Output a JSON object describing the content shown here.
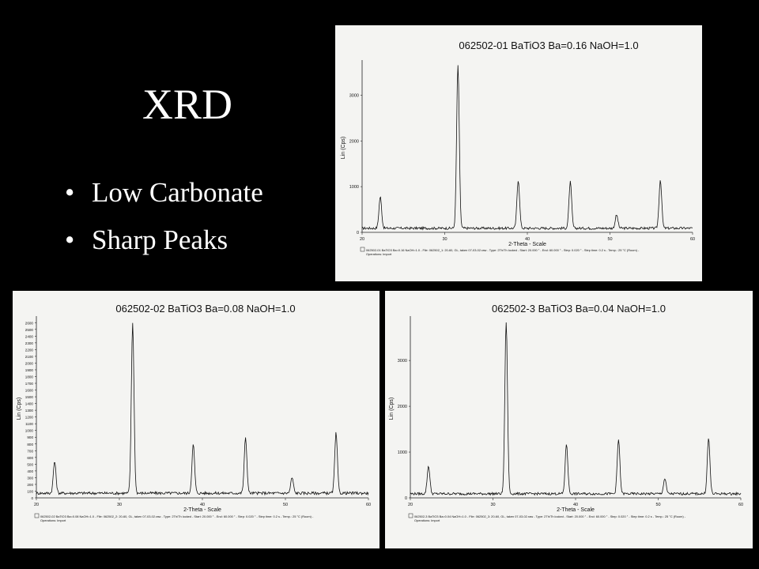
{
  "slide": {
    "title": "XRD",
    "bullets": [
      "Low Carbonate",
      "Sharp Peaks"
    ]
  },
  "chart_data": [
    {
      "type": "line",
      "title": "062502-01 BaTiO3 Ba=0.16 NaOH=1.0",
      "xlabel": "2-Theta - Scale",
      "ylabel": "Lin (Cps)",
      "xlim": [
        20,
        60
      ],
      "ylim": [
        0,
        3700
      ],
      "xticks": [
        20,
        30,
        40,
        50,
        60
      ],
      "yticks": [
        0,
        1000,
        2000,
        3000
      ],
      "peaks": [
        {
          "x": 22.2,
          "y": 780
        },
        {
          "x": 31.6,
          "y": 3650
        },
        {
          "x": 38.9,
          "y": 1150
        },
        {
          "x": 45.2,
          "y": 1100
        },
        {
          "x": 50.8,
          "y": 380
        },
        {
          "x": 56.1,
          "y": 1150
        }
      ],
      "baseline": 90,
      "footer": "062502-01 BaTiO3 Ba=0.16 NaOH=1.0 - File: 062502_1: 20-60, GL, taken 07-03-02.raw - Type: 2Th/Th locked - Start: 20.000 ° - End: 60.000 ° - Step: 0.020 ° - Step time: 0.2 s - Temp.: 25 °C (Room) -",
      "footer2": "Operations: Import"
    },
    {
      "type": "line",
      "title": "062502-02 BaTiO3 Ba=0.08 NaOH=1.0",
      "xlabel": "2-Theta - Scale",
      "ylabel": "Lin (Cps)",
      "xlim": [
        20,
        60
      ],
      "ylim": [
        0,
        2650
      ],
      "xticks": [
        20,
        30,
        40,
        50,
        60
      ],
      "yticks": [
        0,
        100,
        200,
        300,
        400,
        500,
        600,
        700,
        800,
        900,
        1000,
        1100,
        1200,
        1300,
        1400,
        1500,
        1600,
        1700,
        1800,
        1900,
        2000,
        2100,
        2200,
        2300,
        2400,
        2500,
        2600
      ],
      "peaks": [
        {
          "x": 22.2,
          "y": 540
        },
        {
          "x": 31.6,
          "y": 2600
        },
        {
          "x": 38.9,
          "y": 790
        },
        {
          "x": 45.2,
          "y": 890
        },
        {
          "x": 50.8,
          "y": 300
        },
        {
          "x": 56.1,
          "y": 960
        }
      ],
      "baseline": 70,
      "footer": "062502-02 BaTiO3 Ba=0.08 NaOH=1.0 - File: 062502_2: 20-60, GL, taken 07-03-02.raw - Type: 2Th/Th locked - Start: 20.000 ° - End: 60.000 ° - Step: 0.020 ° - Step time: 0.2 s - Temp.: 25 °C (Room) -",
      "footer2": "Operations: Import"
    },
    {
      "type": "line",
      "title": "062502-3 BaTiO3 Ba=0.04 NaOH=1.0",
      "xlabel": "2-Theta - Scale",
      "ylabel": "Lin (Cps)",
      "xlim": [
        20,
        60
      ],
      "ylim": [
        0,
        3900
      ],
      "xticks": [
        20,
        30,
        40,
        50,
        60
      ],
      "yticks": [
        0,
        1000,
        2000,
        3000
      ],
      "peaks": [
        {
          "x": 22.2,
          "y": 700
        },
        {
          "x": 31.6,
          "y": 3850
        },
        {
          "x": 38.9,
          "y": 1180
        },
        {
          "x": 45.2,
          "y": 1280
        },
        {
          "x": 50.8,
          "y": 420
        },
        {
          "x": 56.1,
          "y": 1300
        }
      ],
      "baseline": 90,
      "footer": "062502-3 BaTiO3 Ba=0.04 NaOH=1.0 - File: 062502_3: 20-60, GL, taken 07-03-02.raw - Type: 2Th/Th locked - Start: 20.000 ° - End: 60.000 ° - Step: 0.020 ° - Step time: 0.2 s - Temp.: 25 °C (Room) -",
      "footer2": "Operations: Import"
    }
  ]
}
